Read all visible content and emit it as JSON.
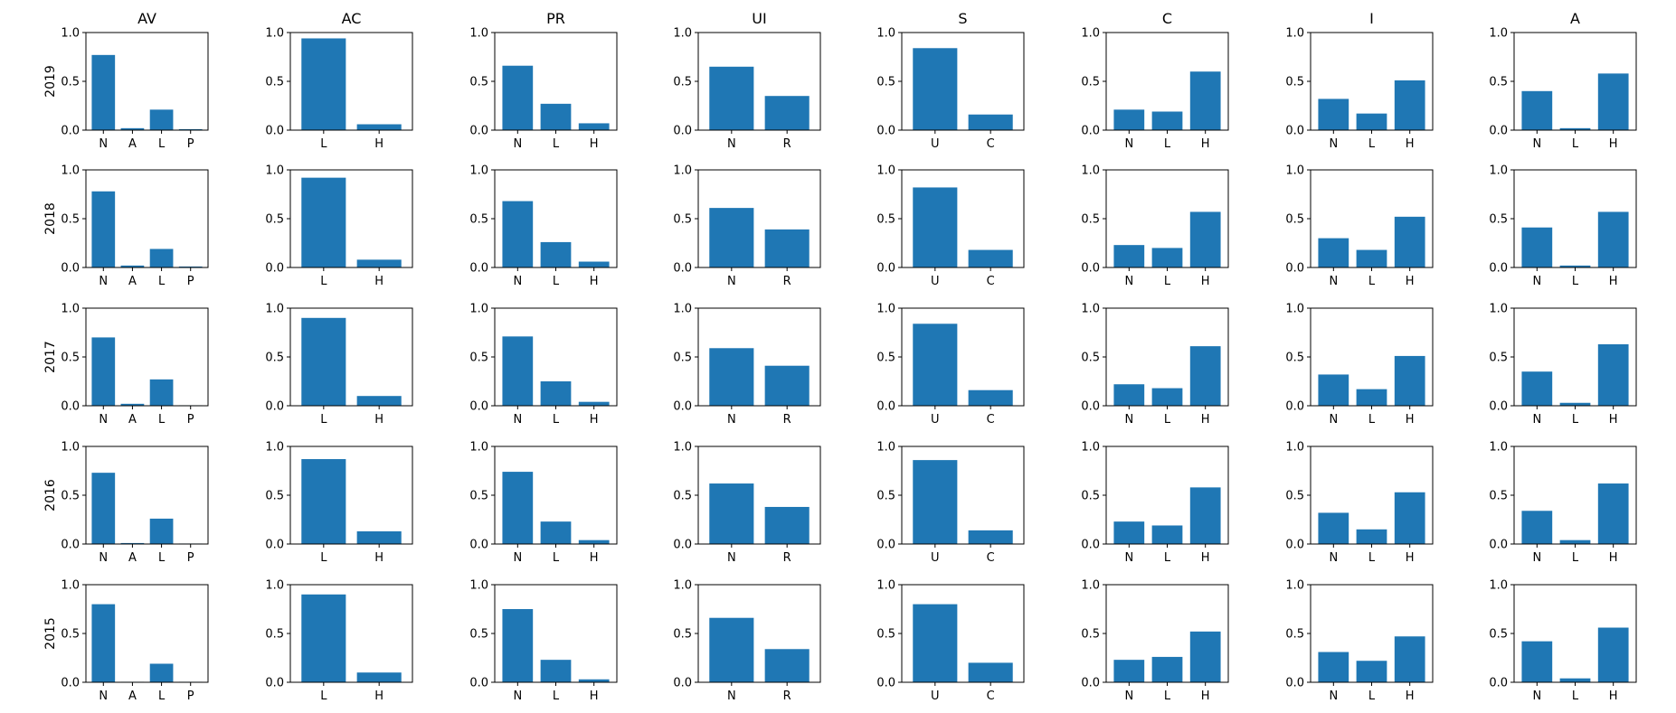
{
  "chart_data": {
    "type": "bar",
    "layout": "grid",
    "columns": [
      "AV",
      "AC",
      "PR",
      "UI",
      "S",
      "C",
      "I",
      "A"
    ],
    "rows": [
      "2019",
      "2018",
      "2017",
      "2016",
      "2015"
    ],
    "ylim": [
      0,
      1.0
    ],
    "yticks": [
      "0.0",
      "0.5",
      "1.0"
    ],
    "bar_color": "#1f77b4",
    "grid": false,
    "categories": {
      "AV": [
        "N",
        "A",
        "L",
        "P"
      ],
      "AC": [
        "L",
        "H"
      ],
      "PR": [
        "N",
        "L",
        "H"
      ],
      "UI": [
        "N",
        "R"
      ],
      "S": [
        "U",
        "C"
      ],
      "C": [
        "N",
        "L",
        "H"
      ],
      "I": [
        "N",
        "L",
        "H"
      ],
      "A": [
        "N",
        "L",
        "H"
      ]
    },
    "values": {
      "2019": {
        "AV": [
          0.77,
          0.02,
          0.21,
          0.01
        ],
        "AC": [
          0.94,
          0.06
        ],
        "PR": [
          0.66,
          0.27,
          0.07
        ],
        "UI": [
          0.65,
          0.35
        ],
        "S": [
          0.84,
          0.16
        ],
        "C": [
          0.21,
          0.19,
          0.6
        ],
        "I": [
          0.32,
          0.17,
          0.51
        ],
        "A": [
          0.4,
          0.02,
          0.58
        ]
      },
      "2018": {
        "AV": [
          0.78,
          0.02,
          0.19,
          0.01
        ],
        "AC": [
          0.92,
          0.08
        ],
        "PR": [
          0.68,
          0.26,
          0.06
        ],
        "UI": [
          0.61,
          0.39
        ],
        "S": [
          0.82,
          0.18
        ],
        "C": [
          0.23,
          0.2,
          0.57
        ],
        "I": [
          0.3,
          0.18,
          0.52
        ],
        "A": [
          0.41,
          0.02,
          0.57
        ]
      },
      "2017": {
        "AV": [
          0.7,
          0.02,
          0.27,
          0.005
        ],
        "AC": [
          0.9,
          0.1
        ],
        "PR": [
          0.71,
          0.25,
          0.04
        ],
        "UI": [
          0.59,
          0.41
        ],
        "S": [
          0.84,
          0.16
        ],
        "C": [
          0.22,
          0.18,
          0.61
        ],
        "I": [
          0.32,
          0.17,
          0.51
        ],
        "A": [
          0.35,
          0.03,
          0.63
        ]
      },
      "2016": {
        "AV": [
          0.73,
          0.01,
          0.26,
          0.005
        ],
        "AC": [
          0.87,
          0.13
        ],
        "PR": [
          0.74,
          0.23,
          0.04
        ],
        "UI": [
          0.62,
          0.38
        ],
        "S": [
          0.86,
          0.14
        ],
        "C": [
          0.23,
          0.19,
          0.58
        ],
        "I": [
          0.32,
          0.15,
          0.53
        ],
        "A": [
          0.34,
          0.04,
          0.62
        ]
      },
      "2015": {
        "AV": [
          0.8,
          0.005,
          0.19,
          0.005
        ],
        "AC": [
          0.9,
          0.1
        ],
        "PR": [
          0.75,
          0.23,
          0.03
        ],
        "UI": [
          0.66,
          0.34
        ],
        "S": [
          0.8,
          0.2
        ],
        "C": [
          0.23,
          0.26,
          0.52
        ],
        "I": [
          0.31,
          0.22,
          0.47
        ],
        "A": [
          0.42,
          0.04,
          0.56
        ]
      }
    }
  }
}
